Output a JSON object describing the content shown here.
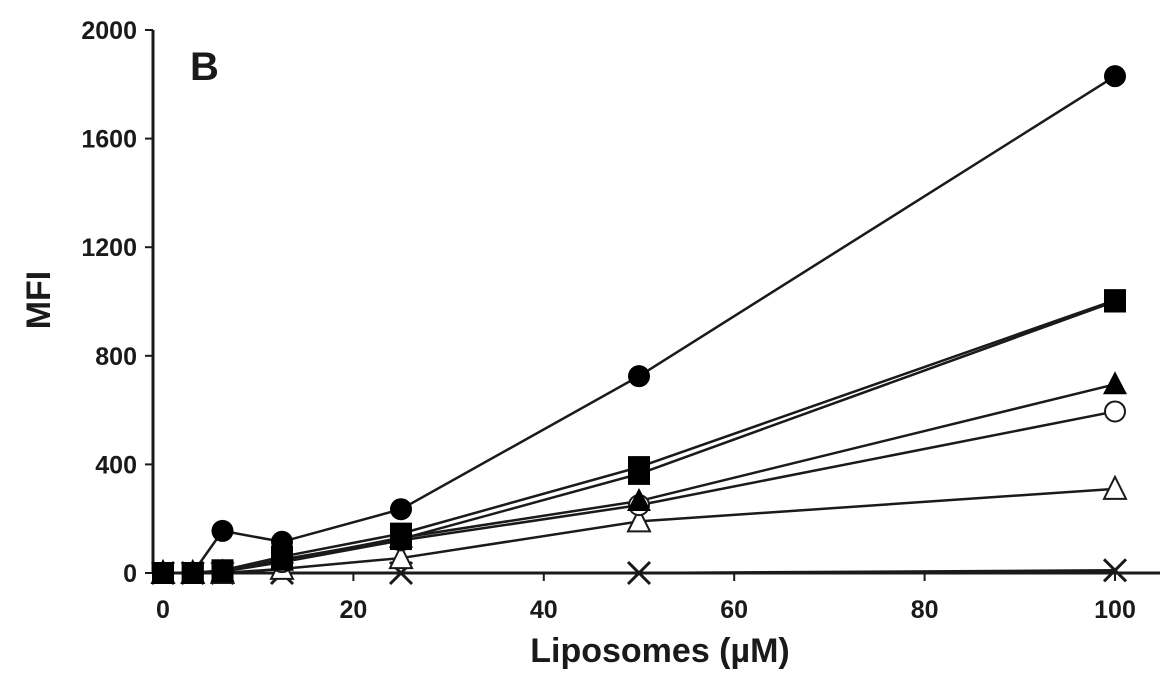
{
  "chart_data": {
    "type": "line",
    "panel_label": "B",
    "xlabel": "Liposomes (µM)",
    "ylabel": "MFI",
    "xlim": [
      0,
      100
    ],
    "ylim": [
      0,
      2000
    ],
    "xticks": [
      0,
      20,
      40,
      60,
      80,
      100
    ],
    "yticks": [
      0,
      400,
      800,
      1200,
      1600,
      2000
    ],
    "grid": false,
    "legend": "none",
    "x": [
      0,
      3.125,
      6.25,
      12.5,
      25,
      50,
      100
    ],
    "series": [
      {
        "marker": "filled-circle",
        "values": [
          0,
          0,
          155,
          115,
          235,
          725,
          1830
        ]
      },
      {
        "marker": "filled-square",
        "values": [
          0,
          0,
          10,
          60,
          145,
          390,
          1005
        ]
      },
      {
        "marker": "filled-square",
        "values": [
          0,
          0,
          5,
          50,
          125,
          365,
          1000
        ]
      },
      {
        "marker": "filled-triangle",
        "values": [
          0,
          0,
          5,
          45,
          130,
          265,
          695
        ]
      },
      {
        "marker": "open-circle",
        "values": [
          0,
          0,
          5,
          40,
          120,
          250,
          595
        ]
      },
      {
        "marker": "open-triangle",
        "values": [
          0,
          0,
          0,
          15,
          55,
          190,
          310
        ]
      },
      {
        "marker": "cross",
        "values": [
          0,
          0,
          0,
          0,
          0,
          0,
          10
        ]
      }
    ],
    "colors": {
      "line": "#1a1a1a",
      "marker_fill": "#000000",
      "open_fill": "#ffffff"
    }
  }
}
